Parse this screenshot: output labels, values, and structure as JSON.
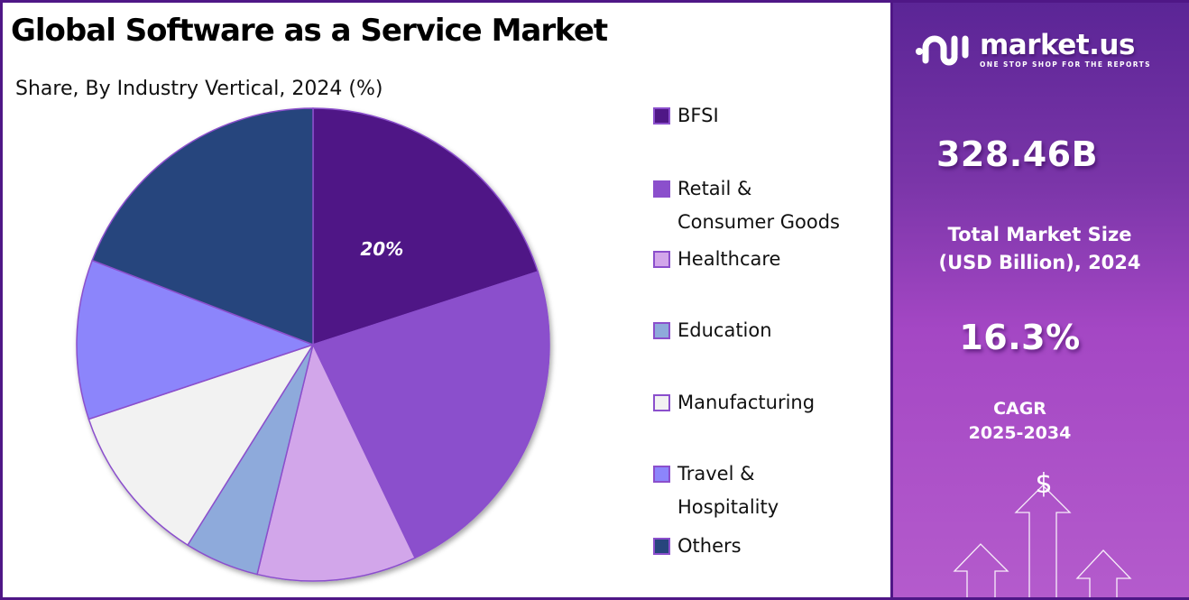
{
  "header": {
    "title": "Global Software as a Service Market",
    "subtitle": "Share, By Industry Vertical, 2024 (%)"
  },
  "chart_data": {
    "type": "pie",
    "title": "Global Software as a Service Market",
    "subtitle": "Share, By Industry Vertical, 2024 (%)",
    "start_angle": "12 o'clock",
    "direction": "clockwise",
    "categories": [
      "BFSI",
      "Retail & Consumer Goods",
      "Healthcare",
      "Education",
      "Manufacturing",
      "Travel & Hospitality",
      "Others"
    ],
    "values": [
      20,
      22.9,
      10.9,
      5.1,
      11.0,
      10.9,
      19.2
    ],
    "colors": [
      "#4f1786",
      "#8b4fcc",
      "#d2a6ea",
      "#8eaadb",
      "#f2f2f2",
      "#8c85fb",
      "#27457d"
    ],
    "data_labels": [
      {
        "category": "BFSI",
        "text": "20%"
      }
    ],
    "slice_border_color": "#8b4fcc",
    "legend_position": "right",
    "legend": [
      {
        "label_lines": [
          "BFSI"
        ],
        "color": "#4f1786"
      },
      {
        "label_lines": [
          "Retail &",
          "Consumer Goods"
        ],
        "color": "#8b4fcc"
      },
      {
        "label_lines": [
          "Healthcare"
        ],
        "color": "#d2a6ea"
      },
      {
        "label_lines": [
          "Education"
        ],
        "color": "#8eaadb"
      },
      {
        "label_lines": [
          "Manufacturing"
        ],
        "color": "#f2f2f2"
      },
      {
        "label_lines": [
          "Travel &",
          "Hospitality"
        ],
        "color": "#8c85fb"
      },
      {
        "label_lines": [
          "Others"
        ],
        "color": "#27457d"
      }
    ]
  },
  "sidebar": {
    "brand": {
      "name": "market.us",
      "tagline": "ONE STOP SHOP FOR THE REPORTS",
      "icon": "market-us-logo-icon"
    },
    "market_size": {
      "value": "328.46B",
      "label_line1": "Total Market Size",
      "label_line2": "(USD Billion), 2024"
    },
    "cagr": {
      "value": "16.3%",
      "label_line1": "CAGR",
      "label_line2": "2025-2034"
    },
    "decoration": {
      "icon": "dollar-growth-arrows-icon",
      "symbol": "$"
    }
  }
}
